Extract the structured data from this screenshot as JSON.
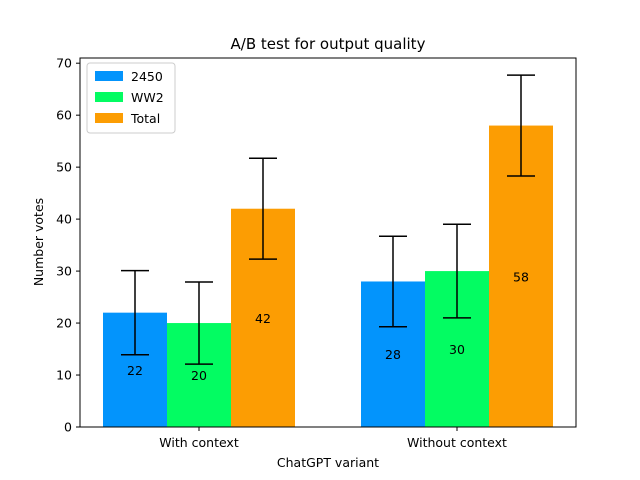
{
  "chart_data": {
    "type": "bar",
    "title": "A/B test for output quality",
    "xlabel": "ChatGPT variant",
    "ylabel": "Number votes",
    "categories": [
      "With context",
      "Without context"
    ],
    "series": [
      {
        "name": "2450",
        "color": "#0394fc",
        "values": [
          22,
          28
        ],
        "errors": [
          8.1,
          8.7
        ]
      },
      {
        "name": "WW2",
        "color": "#03fc62",
        "values": [
          20,
          30
        ],
        "errors": [
          7.9,
          9.0
        ]
      },
      {
        "name": "Total",
        "color": "#fc9d03",
        "values": [
          42,
          58
        ],
        "errors": [
          9.7,
          9.7
        ]
      }
    ],
    "bar_labels": [
      [
        "22",
        "28"
      ],
      [
        "20",
        "30"
      ],
      [
        "42",
        "58"
      ]
    ],
    "ylim": [
      0,
      71
    ],
    "yticks": [
      0,
      10,
      20,
      30,
      40,
      50,
      60,
      70
    ],
    "legend_position": "top-left",
    "grid": false
  }
}
